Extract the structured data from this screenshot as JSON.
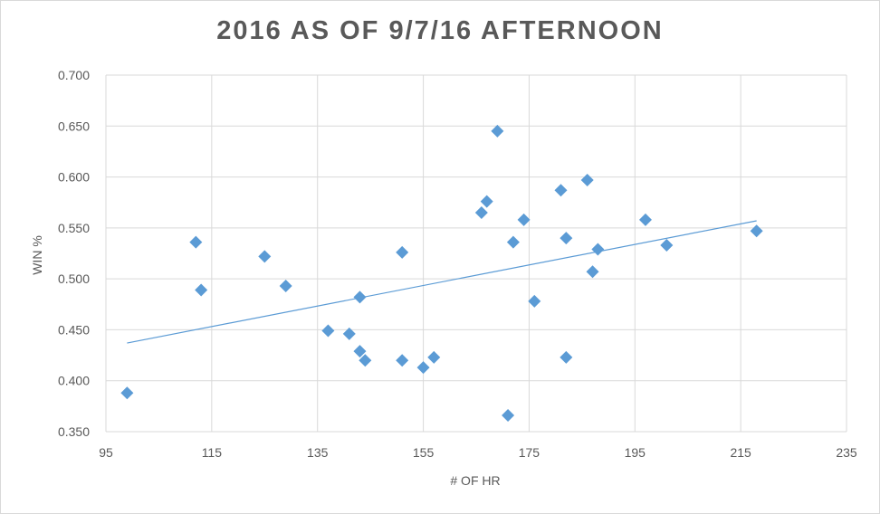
{
  "chart_data": {
    "type": "scatter",
    "title": "2016 AS OF 9/7/16 AFTERNOON",
    "xlabel": "# OF HR",
    "ylabel": "WIN %",
    "xlim": [
      95,
      235
    ],
    "ylim": [
      0.35,
      0.7
    ],
    "x_ticks": [
      "95",
      "115",
      "135",
      "155",
      "175",
      "195",
      "215",
      "235"
    ],
    "y_ticks": [
      "0.350",
      "0.400",
      "0.450",
      "0.500",
      "0.550",
      "0.600",
      "0.650",
      "0.700"
    ],
    "grid": true,
    "legend": "none",
    "marker": "diamond",
    "color": "#5b9bd5",
    "points": [
      {
        "x": 99,
        "y": 0.388
      },
      {
        "x": 112,
        "y": 0.536
      },
      {
        "x": 113,
        "y": 0.489
      },
      {
        "x": 125,
        "y": 0.522
      },
      {
        "x": 129,
        "y": 0.493
      },
      {
        "x": 137,
        "y": 0.449
      },
      {
        "x": 141,
        "y": 0.446
      },
      {
        "x": 143,
        "y": 0.429
      },
      {
        "x": 143,
        "y": 0.482
      },
      {
        "x": 144,
        "y": 0.42
      },
      {
        "x": 151,
        "y": 0.42
      },
      {
        "x": 151,
        "y": 0.526
      },
      {
        "x": 155,
        "y": 0.413
      },
      {
        "x": 157,
        "y": 0.423
      },
      {
        "x": 166,
        "y": 0.565
      },
      {
        "x": 167,
        "y": 0.576
      },
      {
        "x": 169,
        "y": 0.645
      },
      {
        "x": 171,
        "y": 0.366
      },
      {
        "x": 172,
        "y": 0.536
      },
      {
        "x": 174,
        "y": 0.558
      },
      {
        "x": 176,
        "y": 0.478
      },
      {
        "x": 181,
        "y": 0.587
      },
      {
        "x": 182,
        "y": 0.54
      },
      {
        "x": 182,
        "y": 0.423
      },
      {
        "x": 186,
        "y": 0.597
      },
      {
        "x": 187,
        "y": 0.507
      },
      {
        "x": 188,
        "y": 0.529
      },
      {
        "x": 197,
        "y": 0.558
      },
      {
        "x": 201,
        "y": 0.533
      },
      {
        "x": 218,
        "y": 0.547
      }
    ],
    "trendline": {
      "type": "linear",
      "x": [
        99,
        218
      ],
      "y": [
        0.437,
        0.557
      ]
    }
  }
}
